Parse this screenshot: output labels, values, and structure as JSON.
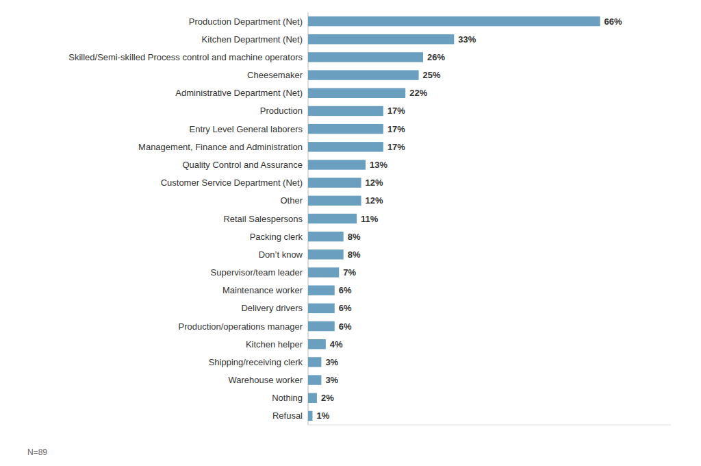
{
  "chart_data": {
    "type": "bar",
    "orientation": "horizontal",
    "categories": [
      "Production Department (Net)",
      "Kitchen Department (Net)",
      "Skilled/Semi-skilled Process control and machine operators",
      "Cheesemaker",
      "Administrative Department (Net)",
      "Production",
      "Entry Level General laborers",
      "Management, Finance and Administration",
      "Quality Control and Assurance",
      "Customer Service Department (Net)",
      "Other",
      "Retail Salespersons",
      "Packing clerk",
      "Don’t know",
      "Supervisor/team leader",
      "Maintenance worker",
      "Delivery drivers",
      "Production/operations manager",
      "Kitchen helper",
      "Shipping/receiving clerk",
      "Warehouse worker",
      "Nothing",
      "Refusal"
    ],
    "values": [
      66,
      33,
      26,
      25,
      22,
      17,
      17,
      17,
      13,
      12,
      12,
      11,
      8,
      8,
      7,
      6,
      6,
      6,
      4,
      3,
      3,
      2,
      1
    ],
    "value_labels": [
      "66%",
      "33%",
      "26%",
      "25%",
      "22%",
      "17%",
      "17%",
      "17%",
      "13%",
      "12%",
      "12%",
      "11%",
      "8%",
      "8%",
      "7%",
      "6%",
      "6%",
      "6%",
      "4%",
      "3%",
      "3%",
      "2%",
      "1%"
    ],
    "data_labels": true,
    "color": "#6a9fc0",
    "xlim": [
      0,
      82
    ],
    "tick_labels": "y",
    "grid": false,
    "annotation": "N=89"
  }
}
